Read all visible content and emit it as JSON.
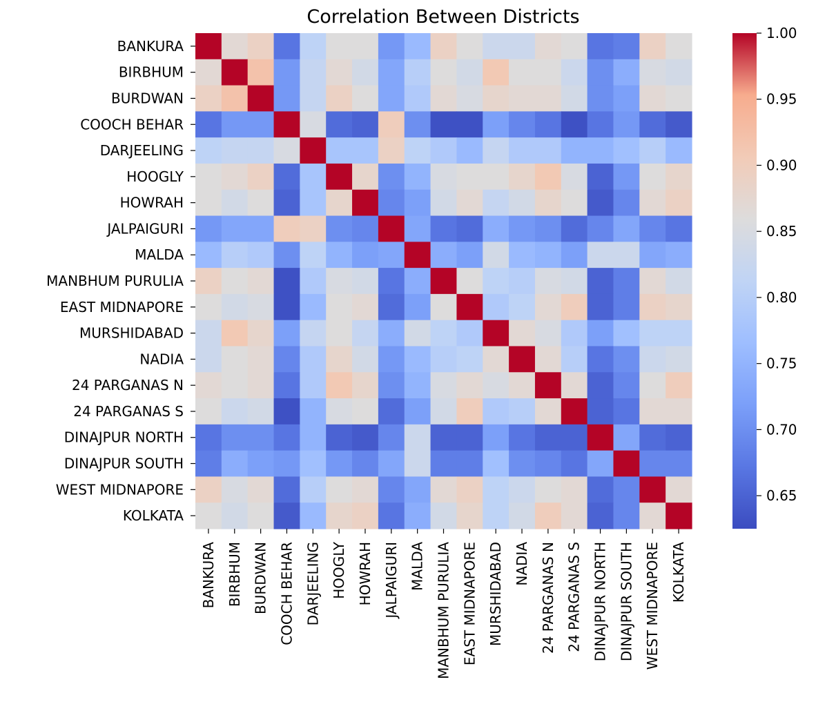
{
  "chart_data": {
    "type": "heatmap",
    "title": "Correlation Between Districts",
    "xlabel": "",
    "ylabel": "",
    "row_labels": [
      "BANKURA",
      "BIRBHUM",
      "BURDWAN",
      "COOCH BEHAR",
      "DARJEELING",
      "HOOGLY",
      "HOWRAH",
      "JALPAIGURI",
      "MALDA",
      "MANBHUM PURULIA",
      "EAST MIDNAPORE",
      "MURSHIDABAD",
      "NADIA",
      "24 PARGANAS N",
      "24 PARGANAS S",
      "DINAJPUR NORTH",
      "DINAJPUR SOUTH",
      "WEST MIDNAPORE",
      "KOLKATA"
    ],
    "col_labels": [
      "BANKURA",
      "BIRBHUM",
      "BURDWAN",
      "COOCH BEHAR",
      "DARJEELING",
      "HOOGLY",
      "HOWRAH",
      "JALPAIGURI",
      "MALDA",
      "MANBHUM PURULIA",
      "EAST MIDNAPORE",
      "MURSHIDABAD",
      "NADIA",
      "24 PARGANAS N",
      "24 PARGANAS S",
      "DINAJPUR NORTH",
      "DINAJPUR SOUTH",
      "WEST MIDNAPORE",
      "KOLKATA"
    ],
    "values": [
      [
        1.0,
        0.87,
        0.89,
        0.67,
        0.81,
        0.86,
        0.86,
        0.71,
        0.76,
        0.89,
        0.86,
        0.83,
        0.83,
        0.87,
        0.86,
        0.67,
        0.68,
        0.89,
        0.86
      ],
      [
        0.87,
        1.0,
        0.92,
        0.71,
        0.82,
        0.87,
        0.84,
        0.73,
        0.8,
        0.86,
        0.84,
        0.91,
        0.86,
        0.86,
        0.83,
        0.7,
        0.74,
        0.85,
        0.84
      ],
      [
        0.89,
        0.92,
        1.0,
        0.71,
        0.82,
        0.89,
        0.86,
        0.73,
        0.79,
        0.87,
        0.85,
        0.88,
        0.87,
        0.87,
        0.84,
        0.7,
        0.72,
        0.87,
        0.86
      ],
      [
        0.67,
        0.71,
        0.71,
        1.0,
        0.85,
        0.66,
        0.65,
        0.9,
        0.7,
        0.63,
        0.63,
        0.72,
        0.69,
        0.67,
        0.63,
        0.67,
        0.71,
        0.66,
        0.64
      ],
      [
        0.81,
        0.82,
        0.82,
        0.85,
        1.0,
        0.78,
        0.78,
        0.89,
        0.81,
        0.79,
        0.76,
        0.82,
        0.79,
        0.79,
        0.75,
        0.75,
        0.77,
        0.8,
        0.76
      ],
      [
        0.86,
        0.87,
        0.89,
        0.66,
        0.78,
        1.0,
        0.88,
        0.7,
        0.75,
        0.85,
        0.86,
        0.86,
        0.88,
        0.91,
        0.85,
        0.65,
        0.71,
        0.86,
        0.88
      ],
      [
        0.86,
        0.84,
        0.86,
        0.65,
        0.78,
        0.88,
        1.0,
        0.69,
        0.72,
        0.84,
        0.87,
        0.82,
        0.84,
        0.88,
        0.86,
        0.64,
        0.69,
        0.87,
        0.89
      ],
      [
        0.71,
        0.73,
        0.73,
        0.9,
        0.89,
        0.7,
        0.69,
        1.0,
        0.73,
        0.67,
        0.66,
        0.74,
        0.71,
        0.7,
        0.66,
        0.69,
        0.73,
        0.69,
        0.67
      ],
      [
        0.76,
        0.8,
        0.79,
        0.7,
        0.81,
        0.75,
        0.72,
        0.73,
        1.0,
        0.74,
        0.72,
        0.84,
        0.76,
        0.75,
        0.72,
        0.83,
        0.83,
        0.73,
        0.74
      ],
      [
        0.89,
        0.86,
        0.87,
        0.63,
        0.79,
        0.85,
        0.84,
        0.67,
        0.74,
        1.0,
        0.86,
        0.81,
        0.8,
        0.85,
        0.84,
        0.65,
        0.68,
        0.87,
        0.84
      ],
      [
        0.86,
        0.84,
        0.85,
        0.63,
        0.76,
        0.86,
        0.87,
        0.66,
        0.72,
        0.86,
        1.0,
        0.79,
        0.81,
        0.87,
        0.9,
        0.65,
        0.68,
        0.89,
        0.88
      ],
      [
        0.83,
        0.91,
        0.88,
        0.72,
        0.82,
        0.86,
        0.82,
        0.74,
        0.84,
        0.81,
        0.79,
        1.0,
        0.87,
        0.85,
        0.79,
        0.72,
        0.77,
        0.81,
        0.81
      ],
      [
        0.83,
        0.86,
        0.87,
        0.69,
        0.79,
        0.88,
        0.84,
        0.71,
        0.76,
        0.8,
        0.81,
        0.87,
        1.0,
        0.87,
        0.8,
        0.67,
        0.7,
        0.83,
        0.84
      ],
      [
        0.87,
        0.86,
        0.87,
        0.67,
        0.79,
        0.91,
        0.88,
        0.7,
        0.75,
        0.85,
        0.87,
        0.85,
        0.87,
        1.0,
        0.87,
        0.65,
        0.69,
        0.86,
        0.9
      ],
      [
        0.86,
        0.83,
        0.84,
        0.63,
        0.75,
        0.85,
        0.86,
        0.66,
        0.72,
        0.84,
        0.9,
        0.79,
        0.8,
        0.87,
        1.0,
        0.65,
        0.67,
        0.87,
        0.87
      ],
      [
        0.67,
        0.7,
        0.7,
        0.67,
        0.75,
        0.65,
        0.64,
        0.69,
        0.83,
        0.65,
        0.65,
        0.72,
        0.67,
        0.65,
        0.65,
        1.0,
        0.73,
        0.66,
        0.65
      ],
      [
        0.68,
        0.74,
        0.72,
        0.71,
        0.77,
        0.71,
        0.69,
        0.73,
        0.83,
        0.68,
        0.68,
        0.77,
        0.7,
        0.69,
        0.67,
        0.73,
        1.0,
        0.69,
        0.69
      ],
      [
        0.89,
        0.85,
        0.87,
        0.66,
        0.8,
        0.86,
        0.87,
        0.69,
        0.73,
        0.87,
        0.89,
        0.81,
        0.83,
        0.86,
        0.87,
        0.66,
        0.69,
        1.0,
        0.87
      ],
      [
        0.86,
        0.84,
        0.86,
        0.64,
        0.76,
        0.88,
        0.89,
        0.67,
        0.74,
        0.84,
        0.88,
        0.81,
        0.84,
        0.9,
        0.87,
        0.65,
        0.69,
        0.87,
        1.0
      ]
    ],
    "colormap": "coolwarm",
    "vmin": 0.625,
    "vmax": 1.0,
    "colorbar_ticks": [
      1.0,
      0.95,
      0.9,
      0.85,
      0.8,
      0.75,
      0.7,
      0.65
    ],
    "colorbar_tick_labels": [
      "1.00",
      "0.95",
      "0.90",
      "0.85",
      "0.80",
      "0.75",
      "0.70",
      "0.65"
    ],
    "grid": false
  }
}
